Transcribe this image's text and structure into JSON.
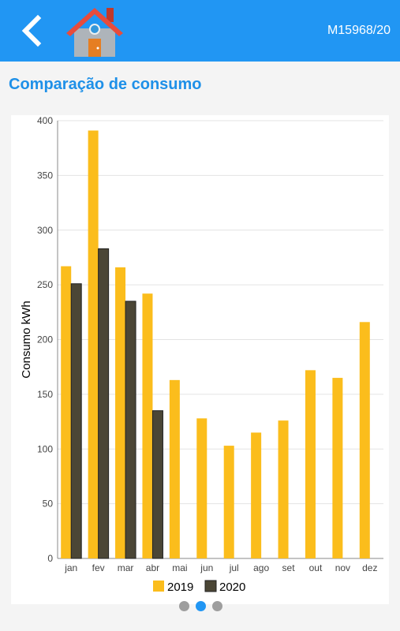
{
  "header": {
    "meter_id": "M15968/20"
  },
  "section": {
    "title": "Comparação de consumo"
  },
  "pager": {
    "pages": 3,
    "active_index": 1
  },
  "colors": {
    "appbar": "#2196f3",
    "title": "#1e90e8",
    "series_2019": "#fbbd1c",
    "series_2020": "#4b4636"
  },
  "chart_data": {
    "type": "bar",
    "title": "",
    "xlabel": "",
    "ylabel": "Consumo kWh",
    "categories": [
      "jan",
      "fev",
      "mar",
      "abr",
      "mai",
      "jun",
      "jul",
      "ago",
      "set",
      "out",
      "nov",
      "dez"
    ],
    "ylim": [
      0,
      400
    ],
    "yticks": [
      0,
      50,
      100,
      150,
      200,
      250,
      300,
      350,
      400
    ],
    "grid": true,
    "legend_position": "bottom",
    "series": [
      {
        "name": "2019",
        "color": "#fbbd1c",
        "values": [
          267,
          391,
          266,
          242,
          163,
          128,
          103,
          115,
          126,
          172,
          165,
          216
        ]
      },
      {
        "name": "2020",
        "color": "#4b4636",
        "values": [
          251,
          283,
          235,
          135,
          null,
          null,
          null,
          null,
          null,
          null,
          null,
          null
        ]
      }
    ]
  }
}
